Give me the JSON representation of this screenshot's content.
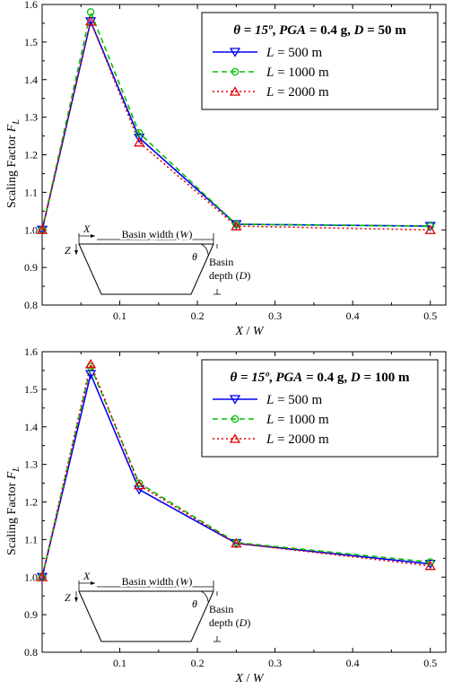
{
  "chart_data": [
    {
      "type": "line",
      "xlabel": "X / W",
      "ylabel": "Scaling Factor F",
      "ylabel_sub": "L",
      "xlim": [
        0,
        0.52
      ],
      "ylim": [
        0.8,
        1.6
      ],
      "xticks": [
        0.1,
        0.2,
        0.3,
        0.4,
        0.5
      ],
      "yticks": [
        0.8,
        0.9,
        1.0,
        1.1,
        1.2,
        1.3,
        1.4,
        1.5,
        1.6
      ],
      "legend": {
        "placement": "top-right",
        "title_parts": [
          "θ = 15º",
          ", ",
          "PGA",
          " = 0.4 g, ",
          "D",
          " = 50 m"
        ]
      },
      "x": [
        0.0,
        0.0625,
        0.125,
        0.25,
        0.5
      ],
      "series": [
        {
          "name": "L = 500 m",
          "name_var": "L",
          "name_rest": " = 500 m",
          "values": [
            1.0,
            1.555,
            1.245,
            1.015,
            1.01
          ],
          "color": "#0000ee",
          "dash": "",
          "marker": "triangle-down"
        },
        {
          "name": "L = 1000 m",
          "name_var": "L",
          "name_rest": " = 1000 m",
          "values": [
            1.0,
            1.58,
            1.258,
            1.015,
            1.01
          ],
          "color": "#00c000",
          "dash": "6,4",
          "marker": "circle"
        },
        {
          "name": "L = 2000 m",
          "name_var": "L",
          "name_rest": " = 2000 m",
          "values": [
            1.0,
            1.555,
            1.233,
            1.01,
            1.0
          ],
          "color": "#e00000",
          "dash": "2,3",
          "marker": "triangle-up"
        }
      ],
      "inset": {
        "x_label": "X",
        "z_label": "Z",
        "width_label": "Basin width (W)",
        "theta_label": "θ",
        "depth_label_1": "Basin",
        "depth_label_2": "depth (D)"
      }
    },
    {
      "type": "line",
      "xlabel": "X / W",
      "ylabel": "Scaling Factor F",
      "ylabel_sub": "L",
      "xlim": [
        0,
        0.52
      ],
      "ylim": [
        0.8,
        1.6
      ],
      "xticks": [
        0.1,
        0.2,
        0.3,
        0.4,
        0.5
      ],
      "yticks": [
        0.8,
        0.9,
        1.0,
        1.1,
        1.2,
        1.3,
        1.4,
        1.5,
        1.6
      ],
      "legend": {
        "placement": "top-right",
        "title_parts": [
          "θ = 15º",
          ", ",
          "PGA",
          " = 0.4 g, ",
          "D",
          " = 100 m"
        ]
      },
      "x": [
        0.0,
        0.0625,
        0.125,
        0.25,
        0.5
      ],
      "series": [
        {
          "name": "L = 500 m",
          "name_var": "L",
          "name_rest": " = 500 m",
          "values": [
            1.0,
            1.54,
            1.233,
            1.09,
            1.035
          ],
          "color": "#0000ee",
          "dash": "",
          "marker": "triangle-down"
        },
        {
          "name": "L = 1000 m",
          "name_var": "L",
          "name_rest": " = 1000 m",
          "values": [
            1.0,
            1.56,
            1.25,
            1.092,
            1.04
          ],
          "color": "#00c000",
          "dash": "6,4",
          "marker": "circle"
        },
        {
          "name": "L = 2000 m",
          "name_var": "L",
          "name_rest": " = 2000 m",
          "values": [
            1.0,
            1.567,
            1.245,
            1.09,
            1.03
          ],
          "color": "#e00000",
          "dash": "2,3",
          "marker": "triangle-up"
        }
      ],
      "inset": {
        "x_label": "X",
        "z_label": "Z",
        "width_label": "Basin width (W)",
        "theta_label": "θ",
        "depth_label_1": "Basin",
        "depth_label_2": "depth (D)"
      }
    }
  ]
}
